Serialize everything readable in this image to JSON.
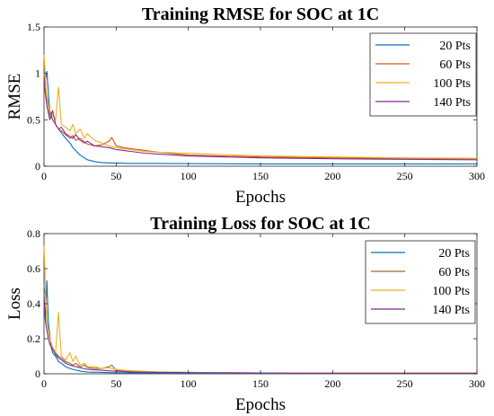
{
  "chart_data": [
    {
      "type": "line",
      "title": "Training RMSE for SOC at 1C",
      "xlabel": "Epochs",
      "ylabel": "RMSE",
      "xlim": [
        0,
        300
      ],
      "ylim": [
        0,
        1.5
      ],
      "xticks": [
        "0",
        "50",
        "100",
        "150",
        "200",
        "250",
        "300"
      ],
      "yticks": [
        "0",
        "0.5",
        "1",
        "1.5"
      ],
      "legend": "top-right",
      "grid": false,
      "series": [
        {
          "name": "20 Pts",
          "color": "#0072BD",
          "x": [
            0,
            2,
            3,
            4,
            6,
            8,
            10,
            12,
            15,
            18,
            20,
            25,
            30,
            35,
            40,
            45,
            50,
            60,
            80,
            100,
            150,
            200,
            250,
            300
          ],
          "y": [
            0.85,
            1.02,
            0.8,
            0.6,
            0.5,
            0.45,
            0.4,
            0.36,
            0.3,
            0.25,
            0.2,
            0.12,
            0.07,
            0.05,
            0.04,
            0.035,
            0.035,
            0.03,
            0.03,
            0.028,
            0.025,
            0.025,
            0.025,
            0.025
          ]
        },
        {
          "name": "60 Pts",
          "color": "#D95319",
          "x": [
            0,
            2,
            4,
            6,
            8,
            10,
            12,
            15,
            18,
            20,
            22,
            25,
            28,
            30,
            35,
            40,
            45,
            47,
            50,
            55,
            60,
            70,
            80,
            100,
            150,
            200,
            250,
            300
          ],
          "y": [
            1.0,
            0.75,
            0.55,
            0.5,
            0.45,
            0.4,
            0.38,
            0.34,
            0.3,
            0.33,
            0.28,
            0.3,
            0.26,
            0.24,
            0.22,
            0.23,
            0.27,
            0.31,
            0.22,
            0.2,
            0.19,
            0.17,
            0.15,
            0.12,
            0.1,
            0.09,
            0.085,
            0.08
          ]
        },
        {
          "name": "100 Pts",
          "color": "#EDB120",
          "x": [
            0,
            2,
            4,
            6,
            8,
            10,
            12,
            15,
            18,
            20,
            22,
            25,
            28,
            30,
            35,
            40,
            45,
            50,
            55,
            60,
            70,
            80,
            100,
            150,
            200,
            250,
            300
          ],
          "y": [
            1.2,
            0.7,
            0.6,
            0.55,
            0.5,
            0.85,
            0.45,
            0.42,
            0.38,
            0.45,
            0.35,
            0.4,
            0.3,
            0.35,
            0.28,
            0.25,
            0.22,
            0.2,
            0.19,
            0.18,
            0.16,
            0.15,
            0.14,
            0.11,
            0.1,
            0.09,
            0.085
          ]
        },
        {
          "name": "140 Pts",
          "color": "#7E2F8E",
          "x": [
            0,
            2,
            4,
            6,
            8,
            10,
            12,
            15,
            18,
            20,
            22,
            25,
            28,
            30,
            35,
            40,
            45,
            50,
            55,
            60,
            70,
            80,
            100,
            150,
            200,
            250,
            300
          ],
          "y": [
            0.9,
            0.65,
            0.5,
            0.6,
            0.45,
            0.4,
            0.42,
            0.35,
            0.32,
            0.3,
            0.34,
            0.28,
            0.25,
            0.27,
            0.22,
            0.21,
            0.2,
            0.18,
            0.17,
            0.16,
            0.14,
            0.13,
            0.11,
            0.09,
            0.08,
            0.075,
            0.07
          ]
        }
      ]
    },
    {
      "type": "line",
      "title": "Training Loss for SOC at 1C",
      "xlabel": "Epochs",
      "ylabel": "Loss",
      "xlim": [
        0,
        300
      ],
      "ylim": [
        0,
        0.8
      ],
      "xticks": [
        "0",
        "50",
        "100",
        "150",
        "200",
        "250",
        "300"
      ],
      "yticks": [
        "0",
        "0.2",
        "0.4",
        "0.6",
        "0.8"
      ],
      "legend": "top-right",
      "grid": false,
      "series": [
        {
          "name": "20 Pts",
          "color": "#0072BD",
          "x": [
            0,
            1,
            2,
            3,
            4,
            5,
            6,
            8,
            10,
            12,
            15,
            18,
            20,
            25,
            30,
            40,
            50,
            60,
            80,
            100,
            150,
            200,
            250,
            300
          ],
          "y": [
            0.4,
            0.3,
            0.53,
            0.3,
            0.22,
            0.15,
            0.12,
            0.1,
            0.07,
            0.06,
            0.04,
            0.03,
            0.025,
            0.015,
            0.01,
            0.008,
            0.006,
            0.005,
            0.004,
            0.003,
            0.002,
            0.002,
            0.002,
            0.002
          ]
        },
        {
          "name": "60 Pts",
          "color": "#A2672D",
          "x": [
            0,
            1,
            2,
            3,
            4,
            6,
            8,
            10,
            12,
            15,
            18,
            20,
            22,
            25,
            28,
            30,
            35,
            40,
            45,
            47,
            50,
            55,
            60,
            80,
            100,
            150,
            200,
            250,
            300
          ],
          "y": [
            0.5,
            0.45,
            0.3,
            0.25,
            0.2,
            0.15,
            0.12,
            0.1,
            0.09,
            0.07,
            0.06,
            0.05,
            0.06,
            0.04,
            0.05,
            0.035,
            0.03,
            0.03,
            0.04,
            0.05,
            0.02,
            0.018,
            0.015,
            0.01,
            0.008,
            0.005,
            0.004,
            0.004,
            0.004
          ]
        },
        {
          "name": "100 Pts",
          "color": "#EDB120",
          "x": [
            0,
            1,
            2,
            3,
            4,
            6,
            8,
            10,
            12,
            15,
            18,
            20,
            22,
            25,
            28,
            30,
            35,
            40,
            45,
            50,
            55,
            60,
            80,
            100,
            150,
            200,
            250,
            300
          ],
          "y": [
            0.73,
            0.5,
            0.3,
            0.25,
            0.2,
            0.15,
            0.12,
            0.35,
            0.1,
            0.08,
            0.12,
            0.07,
            0.1,
            0.05,
            0.06,
            0.04,
            0.04,
            0.03,
            0.035,
            0.025,
            0.02,
            0.018,
            0.01,
            0.008,
            0.005,
            0.004,
            0.004,
            0.004
          ]
        },
        {
          "name": "140 Pts",
          "color": "#7E2F8E",
          "x": [
            0,
            1,
            2,
            3,
            4,
            6,
            8,
            10,
            12,
            15,
            18,
            20,
            25,
            30,
            40,
            50,
            60,
            80,
            100,
            150,
            200,
            250,
            300
          ],
          "y": [
            0.45,
            0.3,
            0.25,
            0.2,
            0.17,
            0.14,
            0.11,
            0.09,
            0.08,
            0.06,
            0.05,
            0.045,
            0.035,
            0.025,
            0.02,
            0.015,
            0.01,
            0.008,
            0.006,
            0.004,
            0.003,
            0.003,
            0.003
          ]
        }
      ]
    }
  ]
}
